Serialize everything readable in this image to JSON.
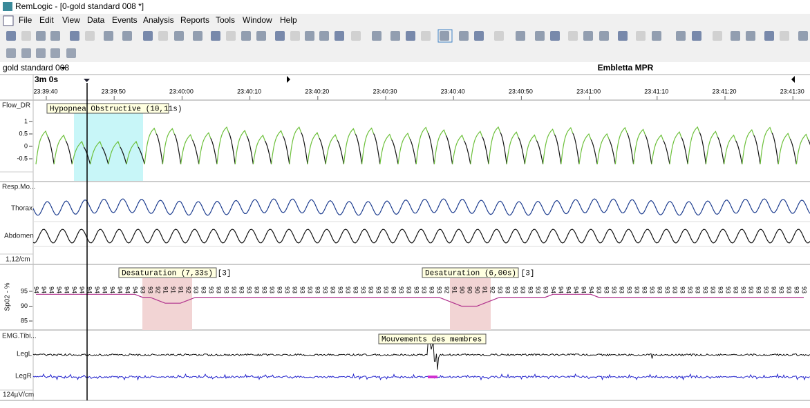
{
  "window": {
    "title": "RemLogic - [0-gold standard 008 *]"
  },
  "menu": [
    "File",
    "Edit",
    "View",
    "Data",
    "Events",
    "Analysis",
    "Reports",
    "Tools",
    "Window",
    "Help"
  ],
  "document": {
    "name": "gold standard 008",
    "device": "Embletta MPR"
  },
  "timeline": {
    "span": "3m 0s",
    "times": [
      "23:39:40",
      "23:39:50",
      "23:40:00",
      "23:40:10",
      "23:40:20",
      "23:40:30",
      "23:40:40",
      "23:40:50",
      "23:41:00",
      "23:41:10",
      "23:41:20",
      "23:41:30"
    ]
  },
  "channels": {
    "flow": {
      "label": "Flow_DR",
      "scale": [
        1,
        0.5,
        0,
        -0.5
      ],
      "event": "Hypopnea Obstructive (10,11s)"
    },
    "resp": {
      "label": "Resp.Mo...",
      "traces": [
        "Thorax",
        "Abdomen"
      ],
      "scale": "1,12/cm"
    },
    "spo2": {
      "label": "Sp02 - %",
      "scale": [
        95,
        90,
        85
      ],
      "events": [
        "Desaturation (7,33s) [3]",
        "Desaturation (6,00s) [3]"
      ],
      "readings": [
        94,
        94,
        94,
        94,
        94,
        94,
        94,
        94,
        94,
        94,
        94,
        94,
        94,
        94,
        93,
        93,
        92,
        91,
        91,
        91,
        92,
        93,
        93,
        93,
        93,
        93,
        93,
        93,
        93,
        93,
        93,
        93,
        93,
        93,
        93,
        93,
        93,
        93,
        93,
        93,
        93,
        93,
        93,
        93,
        93,
        93,
        93,
        93,
        93,
        93,
        93,
        93,
        93,
        93,
        92,
        91,
        90,
        90,
        90,
        91,
        92,
        93,
        93,
        93,
        93,
        93,
        93,
        93,
        94,
        94,
        94,
        94,
        94,
        94,
        93,
        93,
        93,
        93,
        93,
        93,
        93,
        93,
        93,
        93,
        93,
        93,
        93,
        93,
        93,
        93,
        93,
        93,
        93,
        93,
        93,
        93,
        93,
        93,
        93,
        93,
        93,
        93
      ]
    },
    "emg": {
      "label": "EMG.Tibi...",
      "traces": [
        "LegL",
        "LegR"
      ],
      "scale": "124µV/cm",
      "event": "Mouvements des membres"
    }
  }
}
